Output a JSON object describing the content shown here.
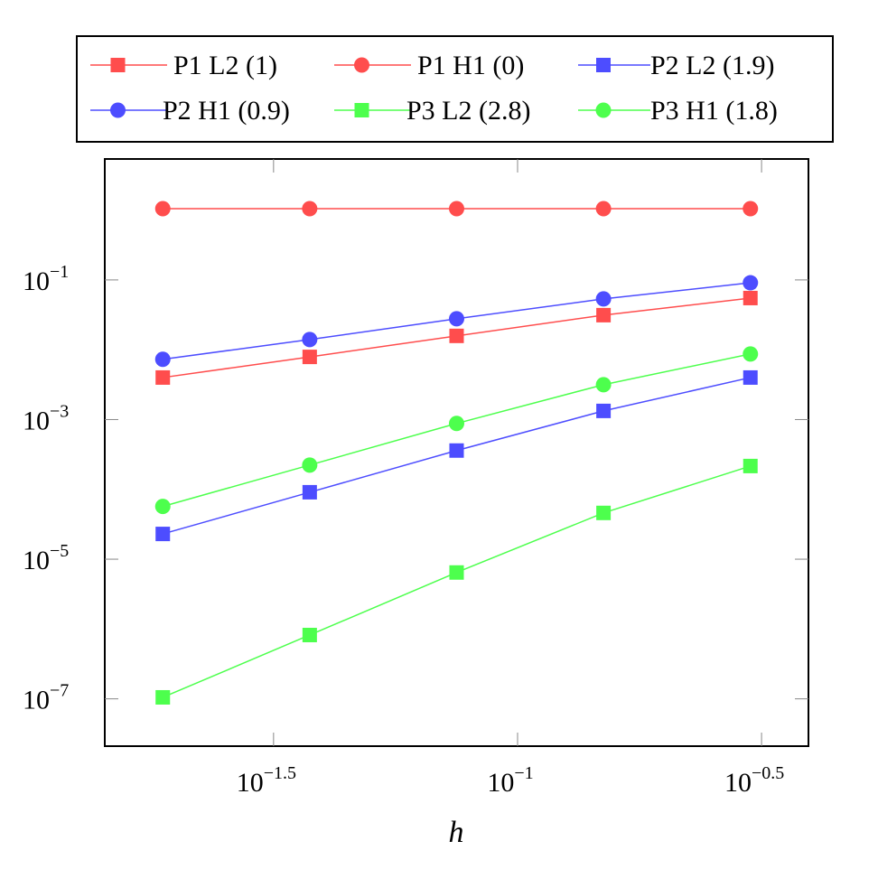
{
  "chart_data": {
    "type": "line",
    "title": "",
    "xlabel": "h",
    "ylabel": "",
    "xscale": "log",
    "yscale": "log",
    "xlim": [
      0.01426,
      0.3945
    ],
    "ylim": [
      2.1e-08,
      5.4
    ],
    "grid": false,
    "legend_position": "top (above plot)",
    "x_ticks": [
      {
        "base": "10",
        "exp": "−1.5",
        "value": 0.03162
      },
      {
        "base": "10",
        "exp": "−1",
        "value": 0.1
      },
      {
        "base": "10",
        "exp": "−0.5",
        "value": 0.3162
      }
    ],
    "y_ticks": [
      {
        "base": "10",
        "exp": "−1",
        "value": 0.1
      },
      {
        "base": "10",
        "exp": "−3",
        "value": 0.001
      },
      {
        "base": "10",
        "exp": "−5",
        "value": 1e-05
      },
      {
        "base": "10",
        "exp": "−7",
        "value": 1e-07
      }
    ],
    "x": [
      0.01875,
      0.0375,
      0.075,
      0.15,
      0.3
    ],
    "series": [
      {
        "name": "P1 L2 (1)",
        "color": "#ff4d4d",
        "marker": "square",
        "values": [
          0.004,
          0.0079,
          0.0158,
          0.0313,
          0.055
        ]
      },
      {
        "name": "P1 H1 (0)",
        "color": "#ff4d4d",
        "marker": "circle",
        "values": [
          1.05,
          1.05,
          1.05,
          1.05,
          1.05
        ]
      },
      {
        "name": "P2 L2 (1.9)",
        "color": "#4d4dff",
        "marker": "square",
        "values": [
          2.3e-05,
          9.1e-05,
          0.00036,
          0.00133,
          0.004
        ]
      },
      {
        "name": "P2 H1 (0.9)",
        "color": "#4d4dff",
        "marker": "circle",
        "values": [
          0.0073,
          0.014,
          0.0278,
          0.0535,
          0.091
        ]
      },
      {
        "name": "P3 L2 (2.8)",
        "color": "#4dff4d",
        "marker": "square",
        "values": [
          1.05e-07,
          8.2e-07,
          6.45e-06,
          4.6e-05,
          0.000216
        ]
      },
      {
        "name": "P3 H1 (1.8)",
        "color": "#4dff4d",
        "marker": "circle",
        "values": [
          5.7e-05,
          0.000223,
          0.00088,
          0.00316,
          0.0087
        ]
      }
    ]
  }
}
